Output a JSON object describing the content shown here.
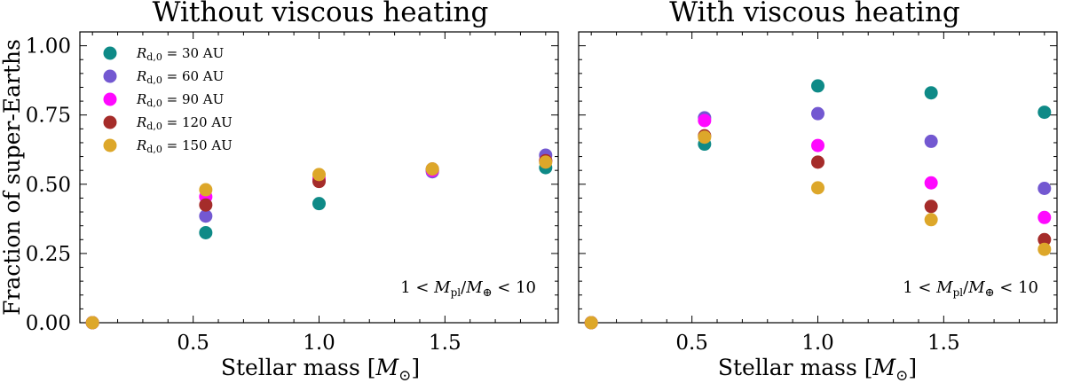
{
  "colors": {
    "Rd30": "#0e8a87",
    "Rd60": "#7358d1",
    "Rd90": "#ff08ff",
    "Rd120": "#a52c2a",
    "Rd150": "#dda72a"
  },
  "chart_data": [
    {
      "type": "scatter",
      "title": "Without viscous heating",
      "xlabel": "Stellar mass [M⊙]",
      "xlabel_text": "Stellar mass [",
      "xlabel_symbol": "M",
      "xlabel_sub": "⊙",
      "xlabel_close": "]",
      "ylabel": "Fraction of super-Earths",
      "xlim": [
        0.05,
        1.95
      ],
      "ylim": [
        0.0,
        1.05
      ],
      "xticks": [
        0.5,
        1.0,
        1.5
      ],
      "xtick_labels": [
        "0.5",
        "1.0",
        "1.5"
      ],
      "yticks": [
        0.0,
        0.25,
        0.5,
        0.75,
        1.0
      ],
      "ytick_labels": [
        "0.00",
        "0.25",
        "0.50",
        "0.75",
        "1.00"
      ],
      "annotation": "1 < Mpl/M⊕ < 10",
      "annotation_parts": [
        "1 < ",
        "M",
        "pl",
        "/",
        "M",
        "⊕",
        " < 10"
      ],
      "legend": {
        "position": "top-left",
        "entries": [
          {
            "name": "Rd,0 = 30 AU",
            "sym": "R",
            "sub": "d,0",
            "rest": " = 30 AU",
            "color_key": "Rd30"
          },
          {
            "name": "Rd,0 = 60 AU",
            "sym": "R",
            "sub": "d,0",
            "rest": " = 60 AU",
            "color_key": "Rd60"
          },
          {
            "name": "Rd,0 = 90 AU",
            "sym": "R",
            "sub": "d,0",
            "rest": " = 90 AU",
            "color_key": "Rd90"
          },
          {
            "name": "Rd,0 = 120 AU",
            "sym": "R",
            "sub": "d,0",
            "rest": " = 120 AU",
            "color_key": "Rd120"
          },
          {
            "name": "Rd,0 = 150 AU",
            "sym": "R",
            "sub": "d,0",
            "rest": " = 150 AU",
            "color_key": "Rd150"
          }
        ]
      },
      "series": [
        {
          "name": "Rd,0 = 30 AU",
          "color_key": "Rd30",
          "x": [
            0.1,
            0.55,
            1.0,
            1.45,
            1.9
          ],
          "y": [
            0.0,
            0.325,
            0.43,
            0.55,
            0.56
          ]
        },
        {
          "name": "Rd,0 = 60 AU",
          "color_key": "Rd60",
          "x": [
            0.1,
            0.55,
            1.0,
            1.45,
            1.9
          ],
          "y": [
            0.0,
            0.385,
            0.52,
            0.545,
            0.605
          ]
        },
        {
          "name": "Rd,0 = 90 AU",
          "color_key": "Rd90",
          "x": [
            0.1,
            0.55,
            1.0,
            1.45,
            1.9
          ],
          "y": [
            0.0,
            0.455,
            0.52,
            0.55,
            0.585
          ]
        },
        {
          "name": "Rd,0 = 120 AU",
          "color_key": "Rd120",
          "x": [
            0.1,
            0.55,
            1.0,
            1.45,
            1.9
          ],
          "y": [
            0.0,
            0.425,
            0.51,
            0.555,
            0.585
          ]
        },
        {
          "name": "Rd,0 = 150 AU",
          "color_key": "Rd150",
          "x": [
            0.1,
            0.55,
            1.0,
            1.45,
            1.9
          ],
          "y": [
            0.0,
            0.48,
            0.535,
            0.555,
            0.58
          ]
        }
      ]
    },
    {
      "type": "scatter",
      "title": "With viscous heating",
      "xlabel": "Stellar mass [M⊙]",
      "xlabel_text": "Stellar mass [",
      "xlabel_symbol": "M",
      "xlabel_sub": "⊙",
      "xlabel_close": "]",
      "ylabel": "",
      "xlim": [
        0.05,
        1.95
      ],
      "ylim": [
        0.0,
        1.05
      ],
      "xticks": [
        0.5,
        1.0,
        1.5
      ],
      "xtick_labels": [
        "0.5",
        "1.0",
        "1.5"
      ],
      "yticks": [
        0.0,
        0.25,
        0.5,
        0.75,
        1.0
      ],
      "ytick_labels": [],
      "annotation": "1 < Mpl/M⊕ < 10",
      "annotation_parts": [
        "1 < ",
        "M",
        "pl",
        "/",
        "M",
        "⊕",
        " < 10"
      ],
      "series": [
        {
          "name": "Rd,0 = 30 AU",
          "color_key": "Rd30",
          "x": [
            0.1,
            0.55,
            1.0,
            1.45,
            1.9
          ],
          "y": [
            0.0,
            0.645,
            0.855,
            0.83,
            0.76
          ]
        },
        {
          "name": "Rd,0 = 60 AU",
          "color_key": "Rd60",
          "x": [
            0.1,
            0.55,
            1.0,
            1.45,
            1.9
          ],
          "y": [
            0.0,
            0.74,
            0.755,
            0.655,
            0.485
          ]
        },
        {
          "name": "Rd,0 = 90 AU",
          "color_key": "Rd90",
          "x": [
            0.1,
            0.55,
            1.0,
            1.45,
            1.9
          ],
          "y": [
            0.0,
            0.73,
            0.64,
            0.505,
            0.38
          ]
        },
        {
          "name": "Rd,0 = 120 AU",
          "color_key": "Rd120",
          "x": [
            0.1,
            0.55,
            1.0,
            1.45,
            1.9
          ],
          "y": [
            0.0,
            0.675,
            0.58,
            0.42,
            0.3
          ]
        },
        {
          "name": "Rd,0 = 150 AU",
          "color_key": "Rd150",
          "x": [
            0.1,
            0.55,
            1.0,
            1.45,
            1.9
          ],
          "y": [
            0.0,
            0.67,
            0.487,
            0.372,
            0.265
          ]
        }
      ]
    }
  ]
}
